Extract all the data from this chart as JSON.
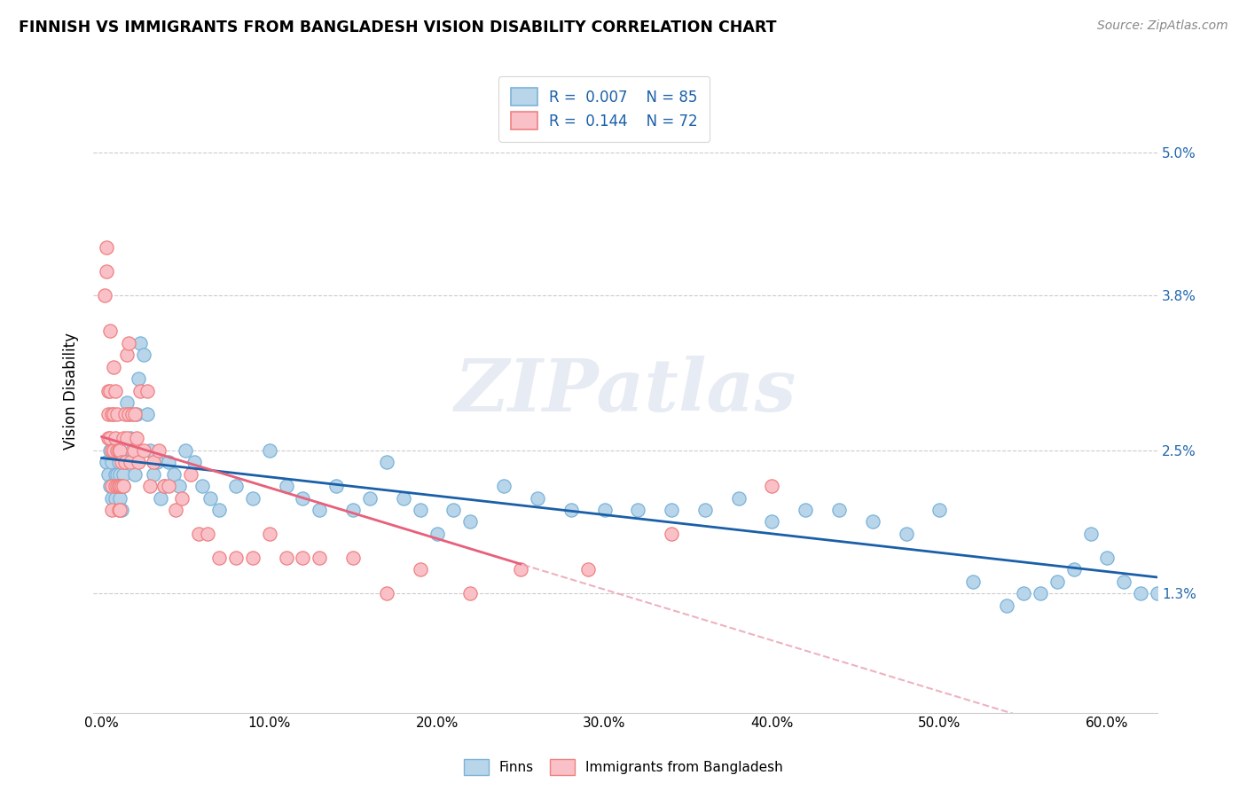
{
  "title": "FINNISH VS IMMIGRANTS FROM BANGLADESH VISION DISABILITY CORRELATION CHART",
  "source": "Source: ZipAtlas.com",
  "ylabel": "Vision Disability",
  "xlabel_ticks": [
    "0.0%",
    "10.0%",
    "20.0%",
    "30.0%",
    "40.0%",
    "50.0%",
    "60.0%"
  ],
  "xlabel_vals": [
    0.0,
    0.1,
    0.2,
    0.3,
    0.4,
    0.5,
    0.6
  ],
  "ytick_labels": [
    "1.3%",
    "2.5%",
    "3.8%",
    "5.0%"
  ],
  "ytick_vals": [
    0.013,
    0.025,
    0.038,
    0.05
  ],
  "ylim": [
    0.003,
    0.057
  ],
  "xlim": [
    -0.005,
    0.63
  ],
  "finns_color": "#7ab3d9",
  "finns_face": "#b8d5ea",
  "bangladesh_color": "#f08080",
  "bangladesh_face": "#f9c0c8",
  "trend_finns_color": "#1a5fa8",
  "trend_bangladesh_solid_color": "#e8607a",
  "trend_bangladesh_dashed_color": "#e8a0b0",
  "watermark": "ZIPatlas",
  "legend_label_1": "R =  0.007    N = 85",
  "legend_label_2": "R =  0.144    N = 72",
  "bottom_legend_1": "Finns",
  "bottom_legend_2": "Immigrants from Bangladesh",
  "finns_x": [
    0.003,
    0.004,
    0.005,
    0.005,
    0.006,
    0.006,
    0.007,
    0.007,
    0.008,
    0.008,
    0.009,
    0.009,
    0.01,
    0.01,
    0.011,
    0.011,
    0.012,
    0.012,
    0.013,
    0.013,
    0.014,
    0.015,
    0.016,
    0.017,
    0.018,
    0.019,
    0.02,
    0.021,
    0.022,
    0.023,
    0.025,
    0.027,
    0.029,
    0.031,
    0.033,
    0.035,
    0.037,
    0.04,
    0.043,
    0.046,
    0.05,
    0.055,
    0.06,
    0.065,
    0.07,
    0.08,
    0.09,
    0.1,
    0.11,
    0.12,
    0.13,
    0.14,
    0.15,
    0.16,
    0.17,
    0.18,
    0.19,
    0.2,
    0.21,
    0.22,
    0.24,
    0.26,
    0.28,
    0.3,
    0.32,
    0.34,
    0.36,
    0.38,
    0.4,
    0.42,
    0.44,
    0.46,
    0.48,
    0.5,
    0.52,
    0.54,
    0.55,
    0.56,
    0.57,
    0.58,
    0.59,
    0.6,
    0.61,
    0.62,
    0.63
  ],
  "finns_y": [
    0.024,
    0.023,
    0.022,
    0.025,
    0.024,
    0.021,
    0.025,
    0.022,
    0.023,
    0.021,
    0.025,
    0.023,
    0.022,
    0.024,
    0.021,
    0.023,
    0.02,
    0.022,
    0.022,
    0.023,
    0.024,
    0.029,
    0.028,
    0.026,
    0.025,
    0.024,
    0.023,
    0.028,
    0.031,
    0.034,
    0.033,
    0.028,
    0.025,
    0.023,
    0.024,
    0.021,
    0.022,
    0.024,
    0.023,
    0.022,
    0.025,
    0.024,
    0.022,
    0.021,
    0.02,
    0.022,
    0.021,
    0.025,
    0.022,
    0.021,
    0.02,
    0.022,
    0.02,
    0.021,
    0.024,
    0.021,
    0.02,
    0.018,
    0.02,
    0.019,
    0.022,
    0.021,
    0.02,
    0.02,
    0.02,
    0.02,
    0.02,
    0.021,
    0.019,
    0.02,
    0.02,
    0.019,
    0.018,
    0.02,
    0.014,
    0.012,
    0.013,
    0.013,
    0.014,
    0.015,
    0.018,
    0.016,
    0.014,
    0.013,
    0.013
  ],
  "bangladesh_x": [
    0.002,
    0.003,
    0.003,
    0.004,
    0.004,
    0.004,
    0.005,
    0.005,
    0.005,
    0.006,
    0.006,
    0.006,
    0.006,
    0.007,
    0.007,
    0.007,
    0.008,
    0.008,
    0.008,
    0.009,
    0.009,
    0.009,
    0.01,
    0.01,
    0.01,
    0.011,
    0.011,
    0.011,
    0.012,
    0.012,
    0.013,
    0.013,
    0.014,
    0.014,
    0.015,
    0.015,
    0.016,
    0.016,
    0.017,
    0.018,
    0.019,
    0.02,
    0.021,
    0.022,
    0.023,
    0.025,
    0.027,
    0.029,
    0.031,
    0.034,
    0.037,
    0.04,
    0.044,
    0.048,
    0.053,
    0.058,
    0.063,
    0.07,
    0.08,
    0.09,
    0.1,
    0.11,
    0.12,
    0.13,
    0.15,
    0.17,
    0.19,
    0.22,
    0.25,
    0.29,
    0.34,
    0.4
  ],
  "bangladesh_y": [
    0.038,
    0.042,
    0.04,
    0.03,
    0.028,
    0.026,
    0.035,
    0.03,
    0.026,
    0.028,
    0.025,
    0.022,
    0.02,
    0.032,
    0.028,
    0.025,
    0.03,
    0.026,
    0.022,
    0.028,
    0.025,
    0.022,
    0.025,
    0.022,
    0.02,
    0.025,
    0.022,
    0.02,
    0.024,
    0.022,
    0.026,
    0.022,
    0.028,
    0.024,
    0.033,
    0.026,
    0.034,
    0.028,
    0.024,
    0.028,
    0.025,
    0.028,
    0.026,
    0.024,
    0.03,
    0.025,
    0.03,
    0.022,
    0.024,
    0.025,
    0.022,
    0.022,
    0.02,
    0.021,
    0.023,
    0.018,
    0.018,
    0.016,
    0.016,
    0.016,
    0.018,
    0.016,
    0.016,
    0.016,
    0.016,
    0.013,
    0.015,
    0.013,
    0.015,
    0.015,
    0.018,
    0.022
  ]
}
